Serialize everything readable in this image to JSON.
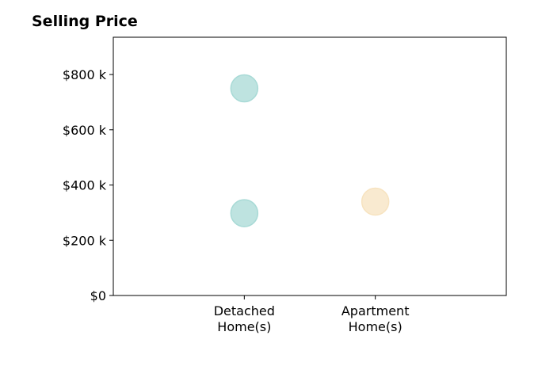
{
  "chart_data": {
    "type": "scatter",
    "title": "Selling Price",
    "categories": [
      "Detached\nHome(s)",
      "Apartment\nHome(s)"
    ],
    "y_ticks": [
      "$0",
      "$200 k",
      "$400 k",
      "$600 k",
      "$800 k"
    ],
    "y_tick_values": [
      0,
      200,
      400,
      600,
      800
    ],
    "ylim": [
      0,
      935
    ],
    "grid": false,
    "points": [
      {
        "category": "Detached\nHome(s)",
        "y": 750,
        "color": "#A8DAD6"
      },
      {
        "category": "Detached\nHome(s)",
        "y": 298,
        "color": "#A8DAD6"
      },
      {
        "category": "Apartment\nHome(s)",
        "y": 340,
        "color": "#F7E3C0"
      }
    ],
    "colors": {
      "detached": "#A8DAD6",
      "apartment": "#F7E3C0"
    }
  }
}
